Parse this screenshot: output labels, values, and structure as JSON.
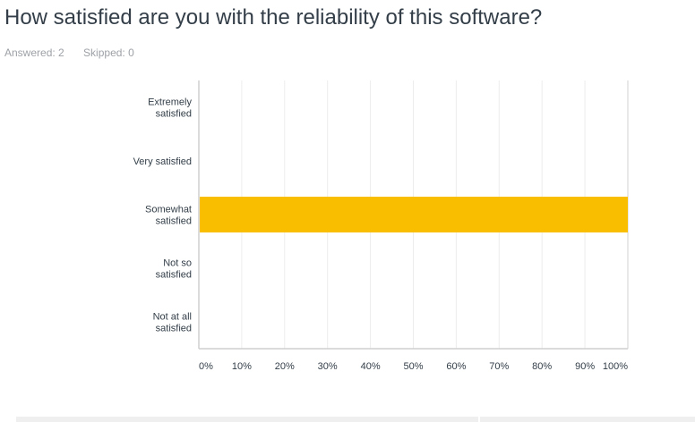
{
  "question": {
    "title": "How satisfied are you with the reliability of this software?",
    "answered": "Answered: 2",
    "skipped": "Skipped: 0"
  },
  "chart_data": {
    "type": "bar",
    "orientation": "horizontal",
    "categories": [
      [
        "Extremely",
        "satisfied"
      ],
      [
        "Very satisfied"
      ],
      [
        "Somewhat",
        "satisfied"
      ],
      [
        "Not so",
        "satisfied"
      ],
      [
        "Not at all",
        "satisfied"
      ]
    ],
    "values": [
      0,
      0,
      100,
      0,
      0
    ],
    "xlim": [
      0,
      100
    ],
    "xticks": [
      "0%",
      "10%",
      "20%",
      "30%",
      "40%",
      "50%",
      "60%",
      "70%",
      "80%",
      "90%",
      "100%"
    ],
    "grid": true,
    "bar_color": "#f9be00"
  }
}
